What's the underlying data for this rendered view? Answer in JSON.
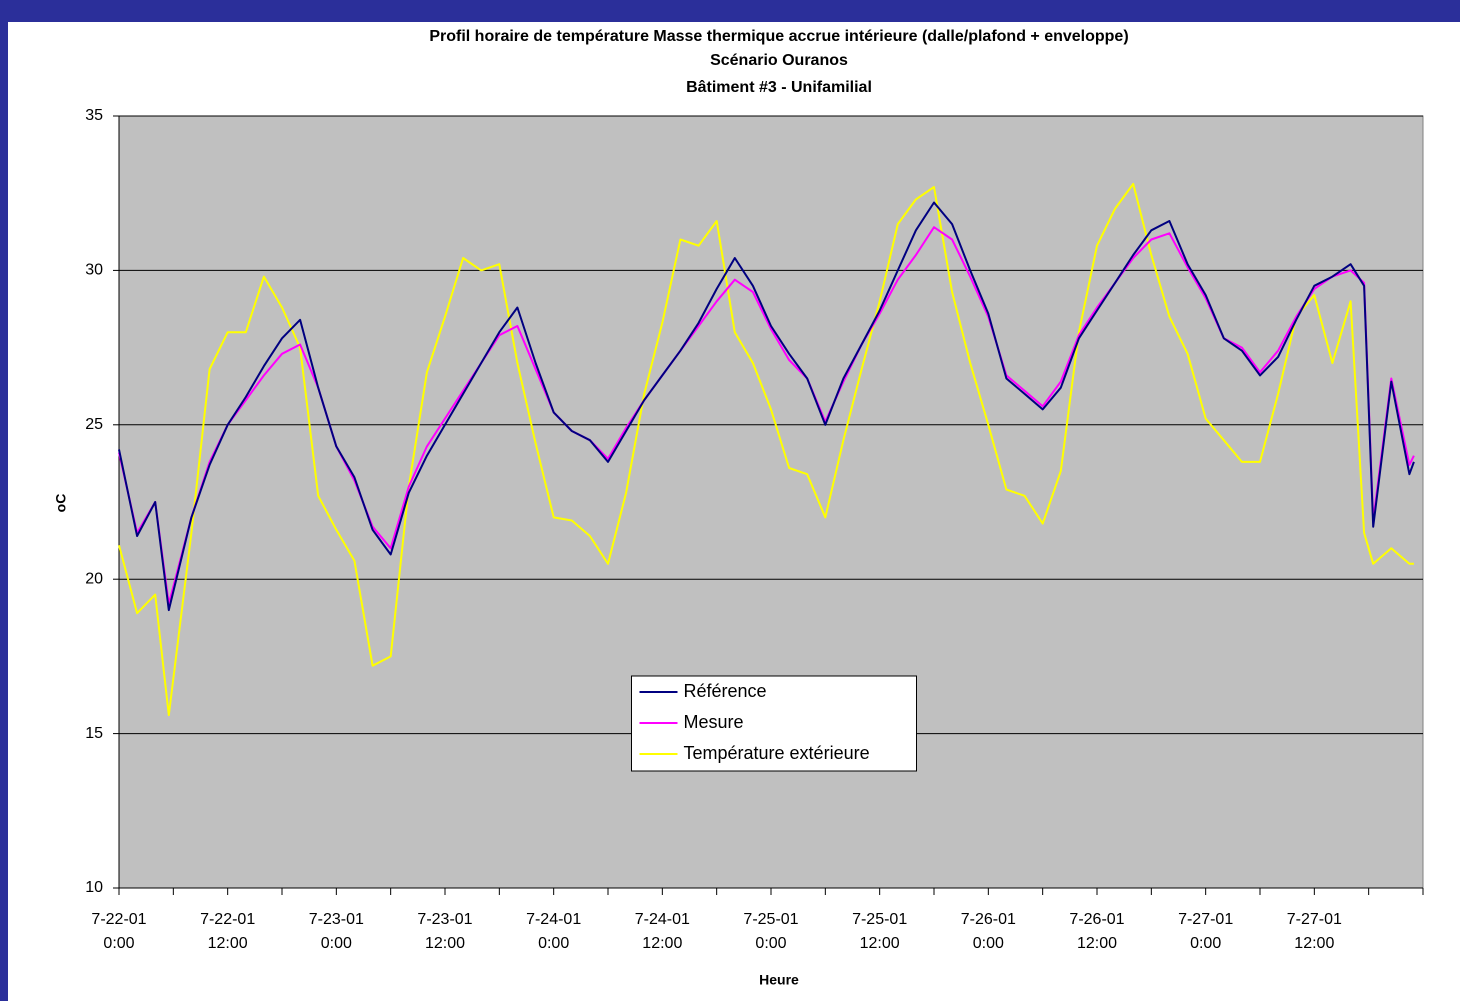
{
  "chart_data": {
    "type": "line",
    "title": "Profil horaire de température Masse thermique accrue intérieure (dalle/plafond + enveloppe)",
    "subtitle": [
      "Scénario Ouranos",
      "Bâtiment #3 - Unifamilial"
    ],
    "y_label": "oC",
    "x_label": "Heure",
    "xlim": [
      0,
      144
    ],
    "ylim": [
      10,
      35
    ],
    "yticks": [
      10,
      15,
      20,
      25,
      30,
      35
    ],
    "xticks": [
      {
        "value": 0,
        "label": "7-22-01 0:00"
      },
      {
        "value": 6,
        "label": null
      },
      {
        "value": 12,
        "label": "7-22-01 12:00"
      },
      {
        "value": 18,
        "label": null
      },
      {
        "value": 24,
        "label": "7-23-01 0:00"
      },
      {
        "value": 30,
        "label": null
      },
      {
        "value": 36,
        "label": "7-23-01 12:00"
      },
      {
        "value": 42,
        "label": null
      },
      {
        "value": 48,
        "label": "7-24-01 0:00"
      },
      {
        "value": 54,
        "label": null
      },
      {
        "value": 60,
        "label": "7-24-01 12:00"
      },
      {
        "value": 66,
        "label": null
      },
      {
        "value": 72,
        "label": "7-25-01 0:00"
      },
      {
        "value": 78,
        "label": null
      },
      {
        "value": 84,
        "label": "7-25-01 12:00"
      },
      {
        "value": 90,
        "label": null
      },
      {
        "value": 96,
        "label": "7-26-01 0:00"
      },
      {
        "value": 102,
        "label": null
      },
      {
        "value": 108,
        "label": "7-26-01 12:00"
      },
      {
        "value": 114,
        "label": null
      },
      {
        "value": 120,
        "label": "7-27-01 0:00"
      },
      {
        "value": 126,
        "label": null
      },
      {
        "value": 132,
        "label": "7-27-01 12:00"
      },
      {
        "value": 138,
        "label": null
      },
      {
        "value": 144,
        "label": null
      }
    ],
    "grid": true,
    "plot_background": "#c0c0c0",
    "legend": "lower center",
    "x": [
      0,
      2,
      4,
      5.5,
      8,
      10,
      12,
      14,
      16,
      18,
      20,
      22,
      24,
      26,
      28,
      30,
      32,
      34,
      36,
      38,
      40,
      42,
      44,
      46,
      48,
      50,
      52,
      54,
      56,
      58,
      60,
      62,
      64,
      66,
      68,
      70,
      72,
      74,
      76,
      78,
      80,
      82,
      84,
      86,
      88,
      90,
      92,
      94,
      96,
      98,
      100,
      102,
      104,
      106,
      108,
      110,
      112,
      114,
      116,
      118,
      120,
      122,
      124,
      126,
      128,
      130,
      132,
      134,
      136,
      137.5,
      138.5,
      140.5,
      142.5,
      143
    ],
    "series": [
      {
        "name": "Référence",
        "color": "#000080",
        "values": [
          24.2,
          21.4,
          22.5,
          19.0,
          22.0,
          23.7,
          25.0,
          25.9,
          26.9,
          27.8,
          28.4,
          26.2,
          24.3,
          23.3,
          21.6,
          20.8,
          22.8,
          24.0,
          25.0,
          26.0,
          27.0,
          28.0,
          28.8,
          27.0,
          25.4,
          24.8,
          24.5,
          23.8,
          24.8,
          25.8,
          26.6,
          27.4,
          28.3,
          29.4,
          30.4,
          29.5,
          28.2,
          27.3,
          26.5,
          25.0,
          26.5,
          27.6,
          28.7,
          30.0,
          31.3,
          32.2,
          31.5,
          30.0,
          28.6,
          26.5,
          26.0,
          25.5,
          26.2,
          27.8,
          28.7,
          29.6,
          30.5,
          31.3,
          31.6,
          30.2,
          29.2,
          27.8,
          27.4,
          26.6,
          27.2,
          28.4,
          29.5,
          29.8,
          30.2,
          29.5,
          21.7,
          26.4,
          23.4,
          23.8
        ]
      },
      {
        "name": "Mesure",
        "color": "#ff00ff",
        "values": [
          24.1,
          21.5,
          22.5,
          19.2,
          22.0,
          23.8,
          25.0,
          25.8,
          26.6,
          27.3,
          27.6,
          26.2,
          24.3,
          23.2,
          21.7,
          21.0,
          23.0,
          24.3,
          25.2,
          26.1,
          27.0,
          27.9,
          28.2,
          26.8,
          25.4,
          24.8,
          24.5,
          23.9,
          24.9,
          25.8,
          26.6,
          27.4,
          28.2,
          29.0,
          29.7,
          29.3,
          28.1,
          27.1,
          26.5,
          25.1,
          26.4,
          27.6,
          28.6,
          29.7,
          30.5,
          31.4,
          31.0,
          29.8,
          28.5,
          26.6,
          26.1,
          25.6,
          26.4,
          27.9,
          28.8,
          29.6,
          30.4,
          31.0,
          31.2,
          30.1,
          29.1,
          27.8,
          27.5,
          26.7,
          27.4,
          28.5,
          29.4,
          29.8,
          30.0,
          29.6,
          21.9,
          26.5,
          23.7,
          24.0
        ]
      },
      {
        "name": "Température extérieure",
        "color": "#ffff00",
        "values": [
          21.1,
          18.9,
          19.5,
          15.6,
          21.5,
          26.8,
          28.0,
          28.0,
          29.8,
          28.8,
          27.5,
          22.7,
          21.6,
          20.6,
          17.2,
          17.5,
          23.0,
          26.7,
          28.5,
          30.4,
          30.0,
          30.2,
          27.0,
          24.4,
          22.0,
          21.9,
          21.4,
          20.5,
          22.8,
          26.0,
          28.3,
          31.0,
          30.8,
          31.6,
          28.0,
          27.0,
          25.5,
          23.6,
          23.4,
          22.0,
          24.5,
          26.8,
          29.0,
          31.5,
          32.3,
          32.7,
          29.3,
          27.0,
          25.0,
          22.9,
          22.7,
          21.8,
          23.5,
          28.0,
          30.8,
          32.0,
          32.8,
          30.5,
          28.5,
          27.3,
          25.2,
          24.5,
          23.8,
          23.8,
          26.0,
          28.5,
          29.2,
          27.0,
          29.0,
          21.5,
          20.5,
          21.0,
          20.5,
          20.5
        ]
      }
    ]
  }
}
